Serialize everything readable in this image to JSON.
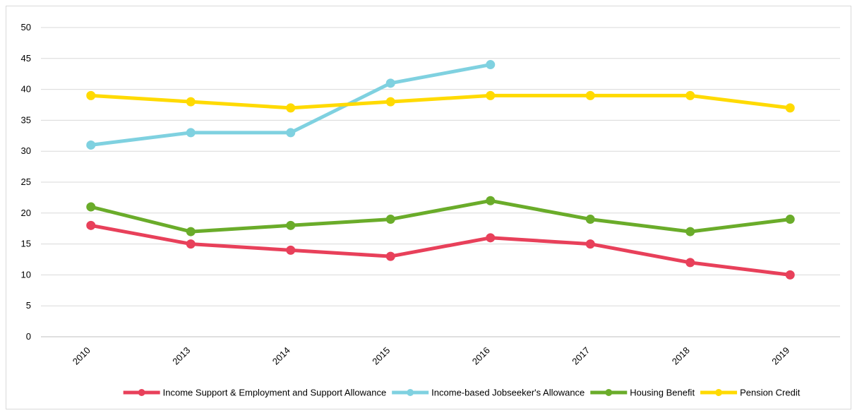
{
  "chart_data": {
    "type": "line",
    "title": "",
    "xlabel": "",
    "ylabel": "",
    "ylim": [
      0,
      50
    ],
    "yticks": [
      0,
      5,
      10,
      15,
      20,
      25,
      30,
      35,
      40,
      45,
      50
    ],
    "categories": [
      "2010",
      "2013",
      "2014",
      "2015",
      "2016",
      "2017",
      "2018",
      "2019"
    ],
    "grid": true,
    "legend_position": "bottom",
    "series": [
      {
        "name": "Income Support & Employment and Support Allowance",
        "color": "#e8405a",
        "values": [
          18,
          15,
          14,
          13,
          16,
          15,
          12,
          10
        ]
      },
      {
        "name": "Income-based Jobseeker's Allowance",
        "color": "#7fd1e0",
        "values": [
          31,
          33,
          33,
          41,
          44,
          null,
          null,
          null
        ]
      },
      {
        "name": "Housing Benefit",
        "color": "#6aac2a",
        "values": [
          21,
          17,
          18,
          19,
          22,
          19,
          17,
          19
        ]
      },
      {
        "name": "Pension Credit",
        "color": "#ffda00",
        "values": [
          39,
          38,
          37,
          38,
          39,
          39,
          39,
          37
        ]
      }
    ]
  }
}
